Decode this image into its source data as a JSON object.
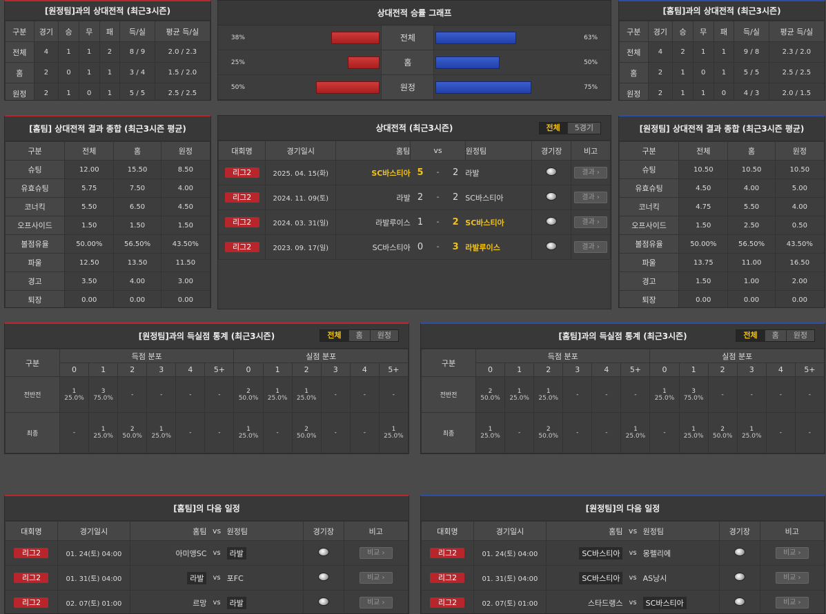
{
  "away_h2h": {
    "title": "[원정팀]과의 상대전적 (최근3시즌)",
    "headers": [
      "구분",
      "경기",
      "승",
      "무",
      "패",
      "득/실",
      "평균 득/실"
    ],
    "rows": [
      [
        "전체",
        "4",
        "1",
        "1",
        "2",
        "8 / 9",
        "2.0 / 2.3"
      ],
      [
        "홈",
        "2",
        "0",
        "1",
        "1",
        "3 / 4",
        "1.5 / 2.0"
      ],
      [
        "원정",
        "2",
        "1",
        "0",
        "1",
        "5 / 5",
        "2.5 / 2.5"
      ]
    ]
  },
  "graph": {
    "title": "상대전적 승률 그래프",
    "rows": [
      {
        "left": "38%",
        "label": "전체",
        "right": "63%",
        "lv": 38,
        "rv": 63
      },
      {
        "left": "25%",
        "label": "홈",
        "right": "50%",
        "lv": 25,
        "rv": 50
      },
      {
        "left": "50%",
        "label": "원정",
        "right": "75%",
        "lv": 50,
        "rv": 75
      }
    ]
  },
  "home_h2h": {
    "title": "[홈팀]과의 상대전적 (최근3시즌)",
    "headers": [
      "구분",
      "경기",
      "승",
      "무",
      "패",
      "득/실",
      "평균 득/실"
    ],
    "rows": [
      [
        "전체",
        "4",
        "2",
        "1",
        "1",
        "9 / 8",
        "2.3 / 2.0"
      ],
      [
        "홈",
        "2",
        "1",
        "0",
        "1",
        "5 / 5",
        "2.5 / 2.5"
      ],
      [
        "원정",
        "2",
        "1",
        "1",
        "0",
        "4 / 3",
        "2.0 / 1.5"
      ]
    ]
  },
  "home_summary": {
    "title": "[홈팀] 상대전적 결과 종합 (최근3시즌 평균)",
    "headers": [
      "구분",
      "전체",
      "홈",
      "원정"
    ],
    "rows": [
      [
        "슈팅",
        "12.00",
        "15.50",
        "8.50"
      ],
      [
        "유효슈팅",
        "5.75",
        "7.50",
        "4.00"
      ],
      [
        "코너킥",
        "5.50",
        "6.50",
        "4.50"
      ],
      [
        "오프사이드",
        "1.50",
        "1.50",
        "1.50"
      ],
      [
        "볼점유율",
        "50.00%",
        "56.50%",
        "43.50%"
      ],
      [
        "파울",
        "12.50",
        "13.50",
        "11.50"
      ],
      [
        "경고",
        "3.50",
        "4.00",
        "3.00"
      ],
      [
        "퇴장",
        "0.00",
        "0.00",
        "0.00"
      ]
    ]
  },
  "h2h_matches": {
    "title": "상대전적 (최근3시즌)",
    "tabs": [
      "전체",
      "5경기"
    ],
    "headers": {
      "league": "대회명",
      "date": "경기일시",
      "home": "홈팀",
      "vs": "vs",
      "away": "원정팀",
      "venue": "경기장",
      "note": "비고"
    },
    "rows": [
      {
        "league": "리그2",
        "date": "2025. 04. 15(화)",
        "home": "SC바스티아",
        "hs": "5",
        "dash": "-",
        "as": "2",
        "away": "라발",
        "win": "home",
        "btn": "결과"
      },
      {
        "league": "리그2",
        "date": "2024. 11. 09(토)",
        "home": "라발",
        "hs": "2",
        "dash": "-",
        "as": "2",
        "away": "SC바스티아",
        "win": "none",
        "btn": "결과"
      },
      {
        "league": "리그2",
        "date": "2024. 03. 31(일)",
        "home": "라발루이스",
        "hs": "1",
        "dash": "-",
        "as": "2",
        "away": "SC바스티아",
        "win": "away",
        "btn": "결과"
      },
      {
        "league": "리그2",
        "date": "2023. 09. 17(일)",
        "home": "SC바스티아",
        "hs": "0",
        "dash": "-",
        "as": "3",
        "away": "라발루이스",
        "win": "away",
        "btn": "결과"
      }
    ]
  },
  "away_summary": {
    "title": "[원정팀] 상대전적 결과 종합 (최근3시즌 평균)",
    "headers": [
      "구분",
      "전체",
      "홈",
      "원정"
    ],
    "rows": [
      [
        "슈팅",
        "10.50",
        "10.50",
        "10.50"
      ],
      [
        "유효슈팅",
        "4.50",
        "4.00",
        "5.00"
      ],
      [
        "코너킥",
        "4.75",
        "5.50",
        "4.00"
      ],
      [
        "오프사이드",
        "1.50",
        "2.50",
        "0.50"
      ],
      [
        "볼점유율",
        "50.00%",
        "56.50%",
        "43.50%"
      ],
      [
        "파울",
        "13.75",
        "11.00",
        "16.50"
      ],
      [
        "경고",
        "1.50",
        "1.00",
        "2.00"
      ],
      [
        "퇴장",
        "0.00",
        "0.00",
        "0.00"
      ]
    ]
  },
  "away_goals": {
    "title": "[원정팀]과의 득실점 통계 (최근3시즌)",
    "tabs": [
      "전체",
      "홈",
      "원정"
    ],
    "label": "구분",
    "groups": [
      "득점 분포",
      "실점 분포"
    ],
    "cols": [
      "0",
      "1",
      "2",
      "3",
      "4",
      "5+"
    ],
    "rows": [
      {
        "label": "전반전",
        "cells": [
          [
            "1",
            "25.0%"
          ],
          [
            "3",
            "75.0%"
          ],
          [
            "-",
            ""
          ],
          [
            "-",
            ""
          ],
          [
            "-",
            ""
          ],
          [
            "-",
            ""
          ],
          [
            "2",
            "50.0%"
          ],
          [
            "1",
            "25.0%"
          ],
          [
            "1",
            "25.0%"
          ],
          [
            "-",
            ""
          ],
          [
            "-",
            ""
          ],
          [
            "-",
            ""
          ]
        ]
      },
      {
        "label": "최종",
        "cells": [
          [
            "-",
            ""
          ],
          [
            "1",
            "25.0%"
          ],
          [
            "2",
            "50.0%"
          ],
          [
            "1",
            "25.0%"
          ],
          [
            "-",
            ""
          ],
          [
            "-",
            ""
          ],
          [
            "1",
            "25.0%"
          ],
          [
            "-",
            ""
          ],
          [
            "2",
            "50.0%"
          ],
          [
            "-",
            ""
          ],
          [
            "-",
            ""
          ],
          [
            "1",
            "25.0%"
          ]
        ]
      }
    ]
  },
  "home_goals": {
    "title": "[홈팀]과의 득실점 통계 (최근3시즌)",
    "tabs": [
      "전체",
      "홈",
      "원정"
    ],
    "label": "구분",
    "groups": [
      "득점 분포",
      "실점 분포"
    ],
    "cols": [
      "0",
      "1",
      "2",
      "3",
      "4",
      "5+"
    ],
    "rows": [
      {
        "label": "전반전",
        "cells": [
          [
            "2",
            "50.0%"
          ],
          [
            "1",
            "25.0%"
          ],
          [
            "1",
            "25.0%"
          ],
          [
            "-",
            ""
          ],
          [
            "-",
            ""
          ],
          [
            "-",
            ""
          ],
          [
            "1",
            "25.0%"
          ],
          [
            "3",
            "75.0%"
          ],
          [
            "-",
            ""
          ],
          [
            "-",
            ""
          ],
          [
            "-",
            ""
          ],
          [
            "-",
            ""
          ]
        ]
      },
      {
        "label": "최종",
        "cells": [
          [
            "1",
            "25.0%"
          ],
          [
            "-",
            ""
          ],
          [
            "2",
            "50.0%"
          ],
          [
            "-",
            ""
          ],
          [
            "-",
            ""
          ],
          [
            "1",
            "25.0%"
          ],
          [
            "-",
            ""
          ],
          [
            "1",
            "25.0%"
          ],
          [
            "2",
            "50.0%"
          ],
          [
            "1",
            "25.0%"
          ],
          [
            "-",
            ""
          ],
          [
            "-",
            ""
          ]
        ]
      }
    ]
  },
  "home_next": {
    "title": "[홈팀]의 다음 일정",
    "headers": {
      "league": "대회명",
      "date": "경기일시",
      "home": "홈팀",
      "vs": "vs",
      "away": "원정팀",
      "venue": "경기장",
      "note": "비고"
    },
    "rows": [
      {
        "league": "리그2",
        "date": "01. 24(토) 04:00",
        "home": "아미앵SC",
        "vs": "vs",
        "away": "라발",
        "boxed": "away",
        "btn": "비교"
      },
      {
        "league": "리그2",
        "date": "01. 31(토) 04:00",
        "home": "라발",
        "vs": "vs",
        "away": "포FC",
        "boxed": "home",
        "btn": "비교"
      },
      {
        "league": "리그2",
        "date": "02. 07(토) 01:00",
        "home": "르망",
        "vs": "vs",
        "away": "라발",
        "boxed": "away",
        "btn": "비교"
      }
    ]
  },
  "away_next": {
    "title": "[원정팀]의 다음 일정",
    "headers": {
      "league": "대회명",
      "date": "경기일시",
      "home": "홈팀",
      "vs": "vs",
      "away": "원정팀",
      "venue": "경기장",
      "note": "비고"
    },
    "rows": [
      {
        "league": "리그2",
        "date": "01. 24(토) 04:00",
        "home": "SC바스티아",
        "vs": "vs",
        "away": "몽펠리에",
        "boxed": "home",
        "btn": "비교"
      },
      {
        "league": "리그2",
        "date": "01. 31(토) 04:00",
        "home": "SC바스티아",
        "vs": "vs",
        "away": "AS낭시",
        "boxed": "home",
        "btn": "비교"
      },
      {
        "league": "리그2",
        "date": "02. 07(토) 01:00",
        "home": "스타드랭스",
        "vs": "vs",
        "away": "SC바스티아",
        "boxed": "away",
        "btn": "비교"
      }
    ]
  }
}
